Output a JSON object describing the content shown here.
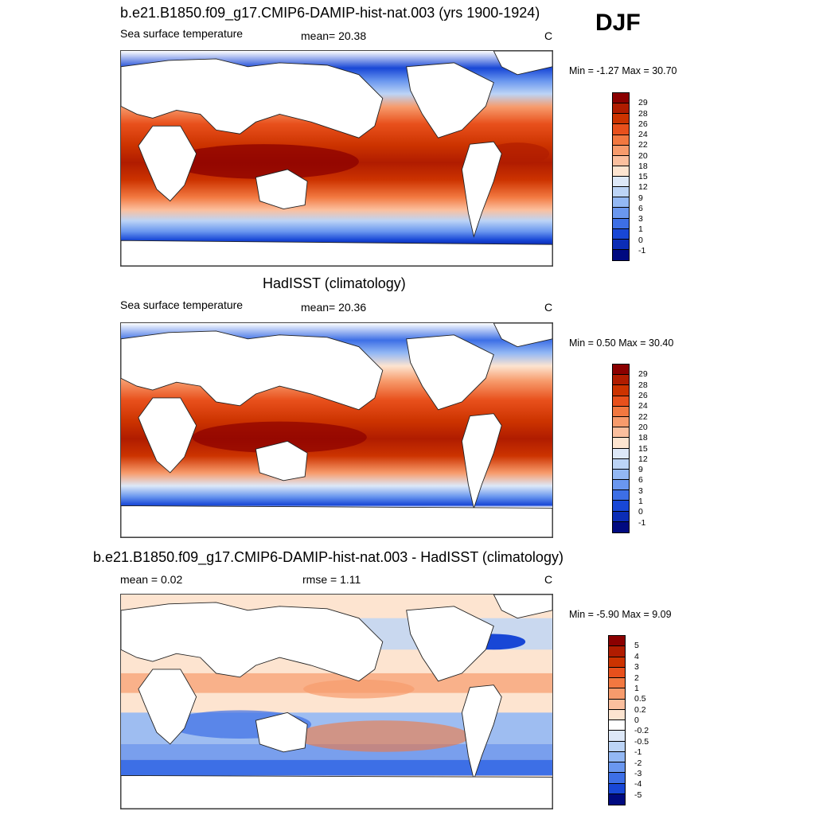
{
  "season": "DJF",
  "panels": [
    {
      "id": "model",
      "title": "b.e21.B1850.f09_g17.CMIP6-DAMIP-hist-nat.003 (yrs 1900-1924)",
      "left_label": "Sea surface temperature",
      "stat_text": "mean=  20.38",
      "units": "C",
      "minmax": "Min =  -1.27 Max =  30.70",
      "colorbar": {
        "labels": [
          "29",
          "28",
          "26",
          "24",
          "22",
          "20",
          "18",
          "15",
          "12",
          "9",
          "6",
          "3",
          "1",
          "0",
          "-1"
        ],
        "colors": [
          "#8b0000",
          "#b01c00",
          "#cc3300",
          "#e8501c",
          "#f27840",
          "#f79b6c",
          "#fbbf9e",
          "#fde4d0",
          "#dde8f8",
          "#bcd4f6",
          "#93b8f4",
          "#6a97ef",
          "#3d6fe6",
          "#1847d6",
          "#0b2db6",
          "#000a80"
        ]
      }
    },
    {
      "id": "obs",
      "title": "HadISST (climatology)",
      "left_label": "Sea surface temperature",
      "stat_text": "mean=  20.36",
      "units": "C",
      "minmax": "Min =   0.50 Max =  30.40",
      "colorbar": {
        "labels": [
          "29",
          "28",
          "26",
          "24",
          "22",
          "20",
          "18",
          "15",
          "12",
          "9",
          "6",
          "3",
          "1",
          "0",
          "-1"
        ],
        "colors": [
          "#8b0000",
          "#b01c00",
          "#cc3300",
          "#e8501c",
          "#f27840",
          "#f79b6c",
          "#fbbf9e",
          "#fde4d0",
          "#dde8f8",
          "#bcd4f6",
          "#93b8f4",
          "#6a97ef",
          "#3d6fe6",
          "#1847d6",
          "#0b2db6",
          "#000a80"
        ]
      }
    },
    {
      "id": "diff",
      "title": "b.e21.B1850.f09_g17.CMIP6-DAMIP-hist-nat.003 - HadISST (climatology)",
      "left_label": "mean =   0.02",
      "stat_text": "rmse =   1.11",
      "units": "C",
      "minmax": "Min =  -5.90 Max =   9.09",
      "colorbar": {
        "labels": [
          "5",
          "4",
          "3",
          "2",
          "1",
          "0.5",
          "0.2",
          "0",
          "-0.2",
          "-0.5",
          "-1",
          "-2",
          "-3",
          "-4",
          "-5"
        ],
        "colors": [
          "#8b0000",
          "#b01c00",
          "#cc3300",
          "#e8501c",
          "#f27840",
          "#f79b6c",
          "#fbbf9e",
          "#fde4d0",
          "#ffffff",
          "#dde8f8",
          "#bcd4f6",
          "#93b8f4",
          "#6a97ef",
          "#3d6fe6",
          "#1847d6",
          "#000a80"
        ]
      }
    }
  ]
}
